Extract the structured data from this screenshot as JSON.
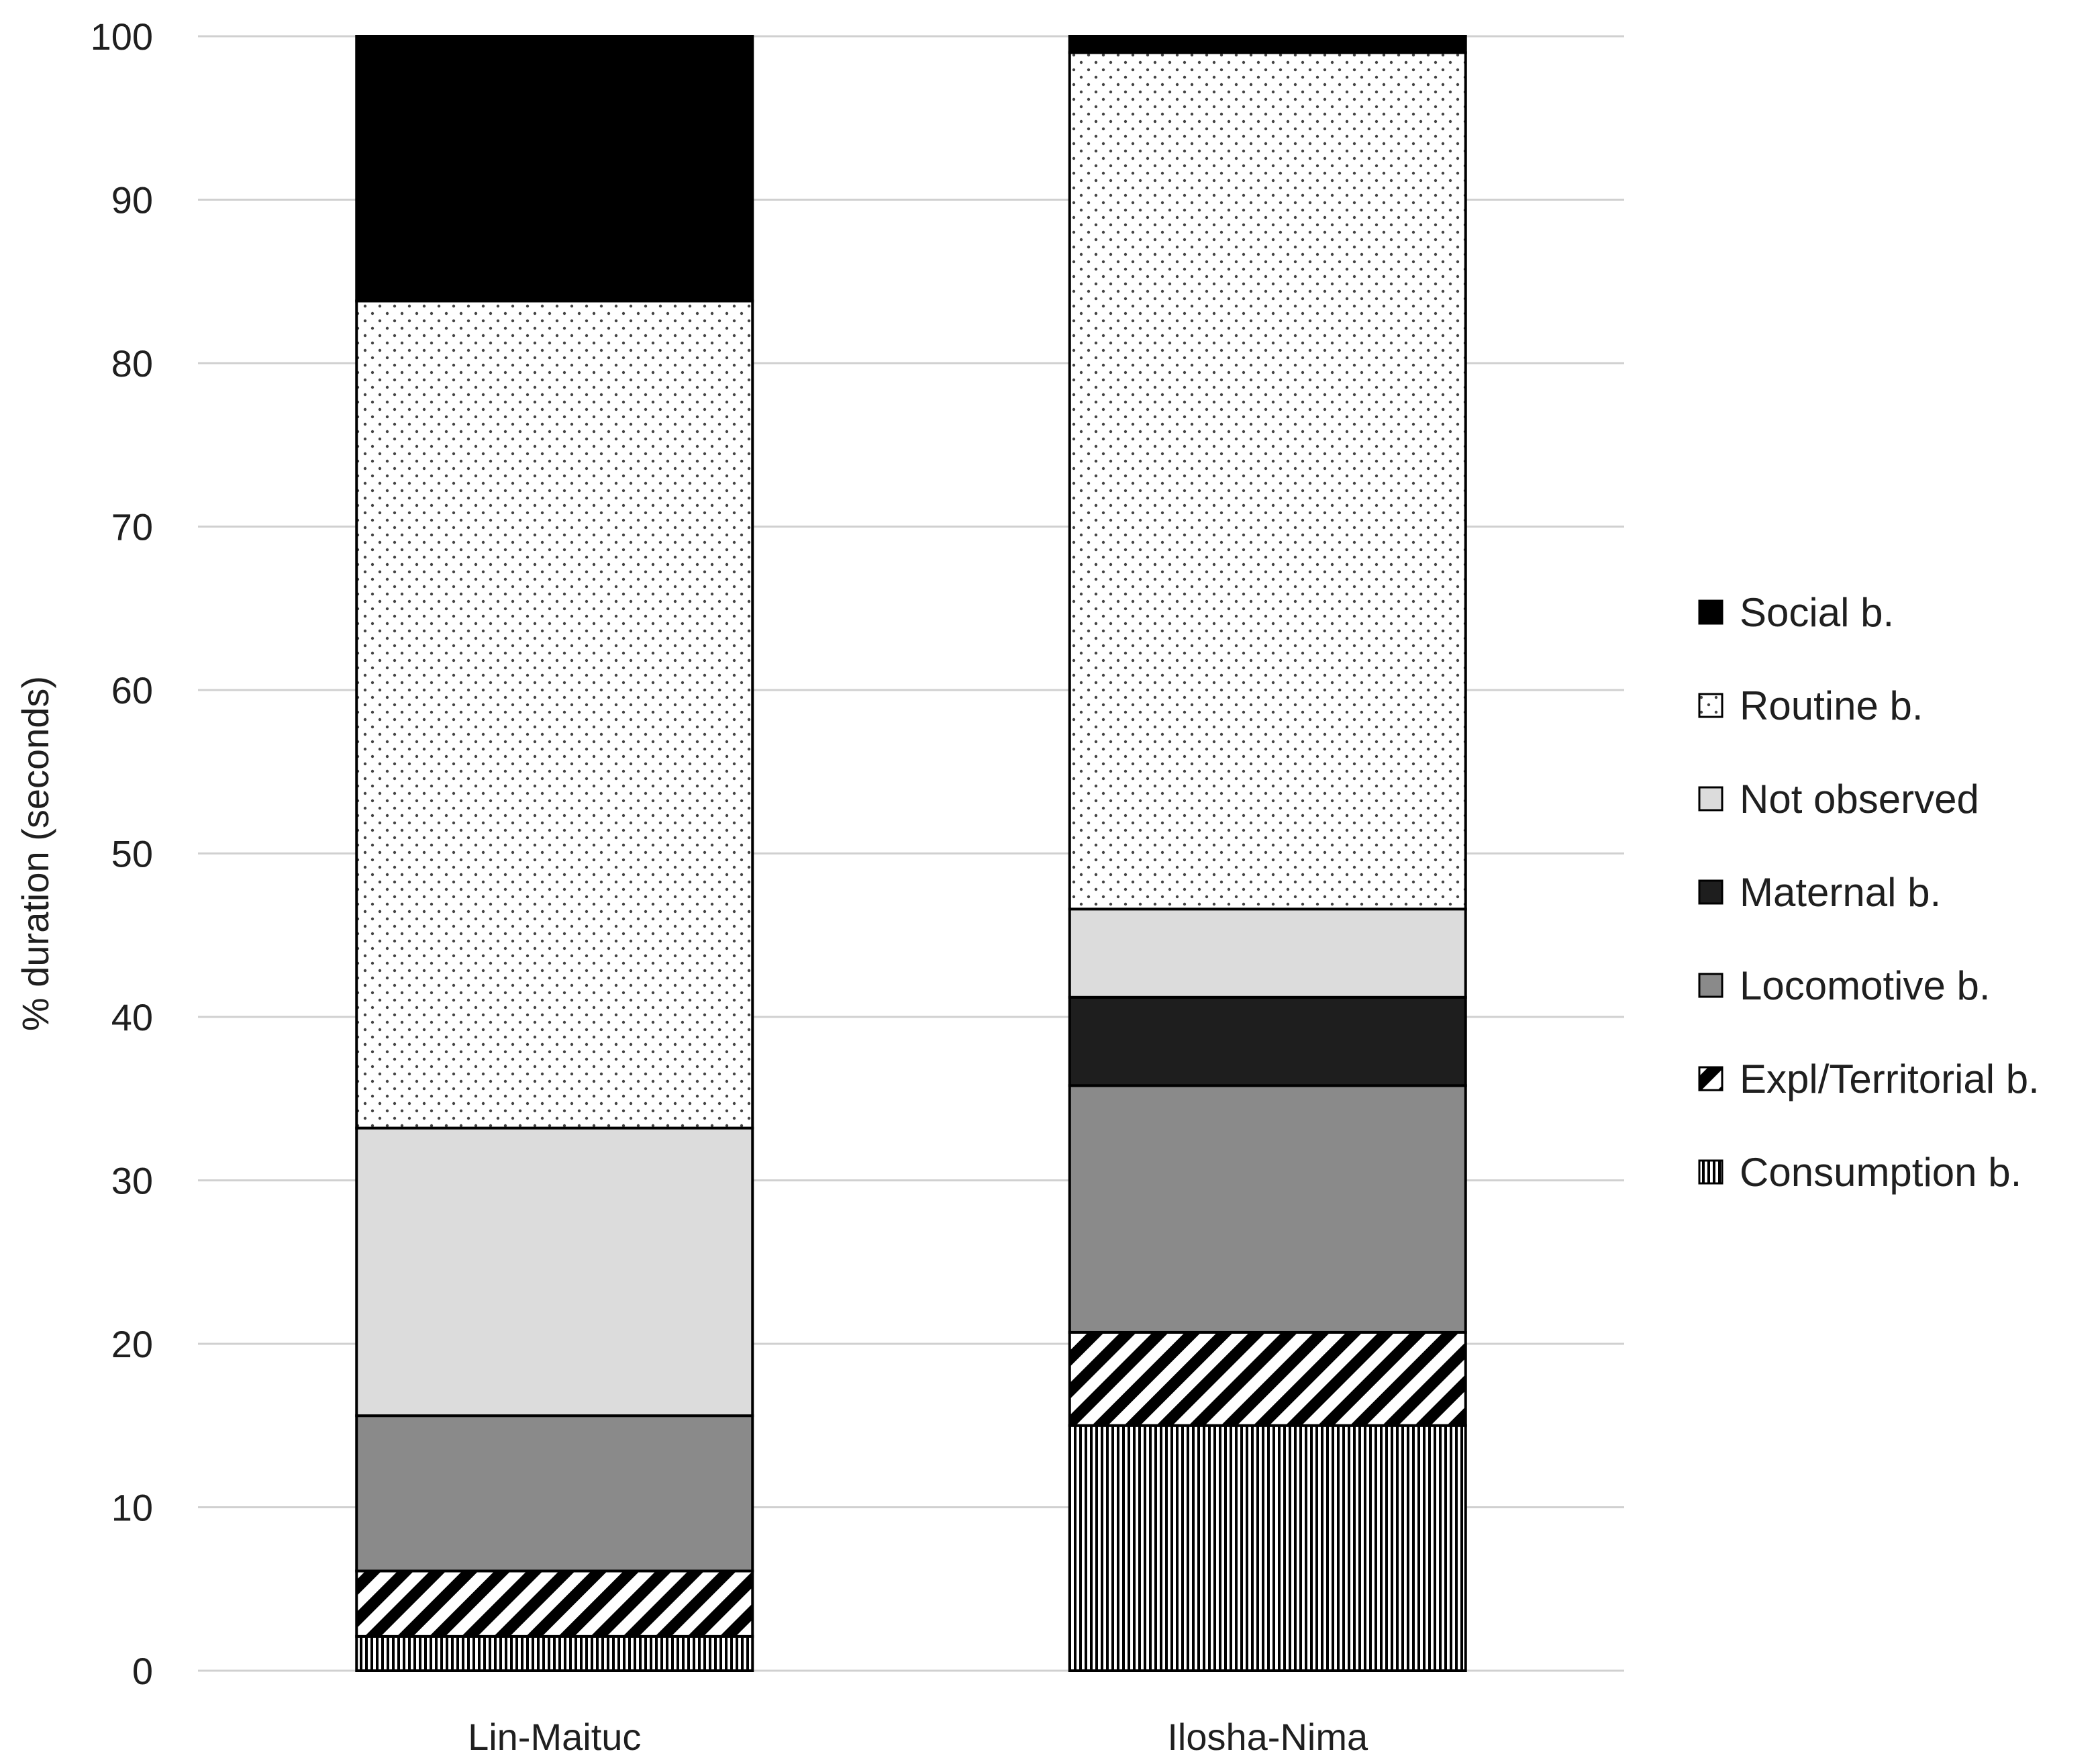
{
  "chart_data": {
    "type": "bar",
    "stacked": true,
    "categories": [
      "Lin-Maituc",
      "Ilosha-Nima"
    ],
    "ylabel": "% duration (seconds)",
    "xlabel": "",
    "ylim": [
      0,
      100
    ],
    "yticks": [
      0,
      10,
      20,
      30,
      40,
      50,
      60,
      70,
      80,
      90,
      100
    ],
    "grid": true,
    "legend_position": "right",
    "series": [
      {
        "name": "Consumption b.",
        "values": [
          2.1,
          15.0
        ],
        "pattern": "vertical-lines",
        "color": "#000000"
      },
      {
        "name": "Expl/Territorial b.",
        "values": [
          4.0,
          5.7
        ],
        "pattern": "diagonal-stripes",
        "color": "#000000"
      },
      {
        "name": "Locomotive b.",
        "values": [
          9.5,
          15.1
        ],
        "pattern": "solid",
        "color": "#8a8a8a"
      },
      {
        "name": "Maternal b.",
        "values": [
          0.0,
          5.4
        ],
        "pattern": "solid",
        "color": "#1e1e1e"
      },
      {
        "name": "Not observed",
        "values": [
          17.6,
          5.4
        ],
        "pattern": "solid",
        "color": "#dcdcdc"
      },
      {
        "name": "Routine b.",
        "values": [
          50.6,
          52.4
        ],
        "pattern": "dots",
        "color": "#ffffff"
      },
      {
        "name": "Social b.",
        "values": [
          16.2,
          1.0
        ],
        "pattern": "solid",
        "color": "#000000"
      }
    ],
    "legend_order": [
      "Social b.",
      "Routine b.",
      "Not observed",
      "Maternal b.",
      "Locomotive b.",
      "Expl/Territorial b.",
      "Consumption b."
    ]
  }
}
